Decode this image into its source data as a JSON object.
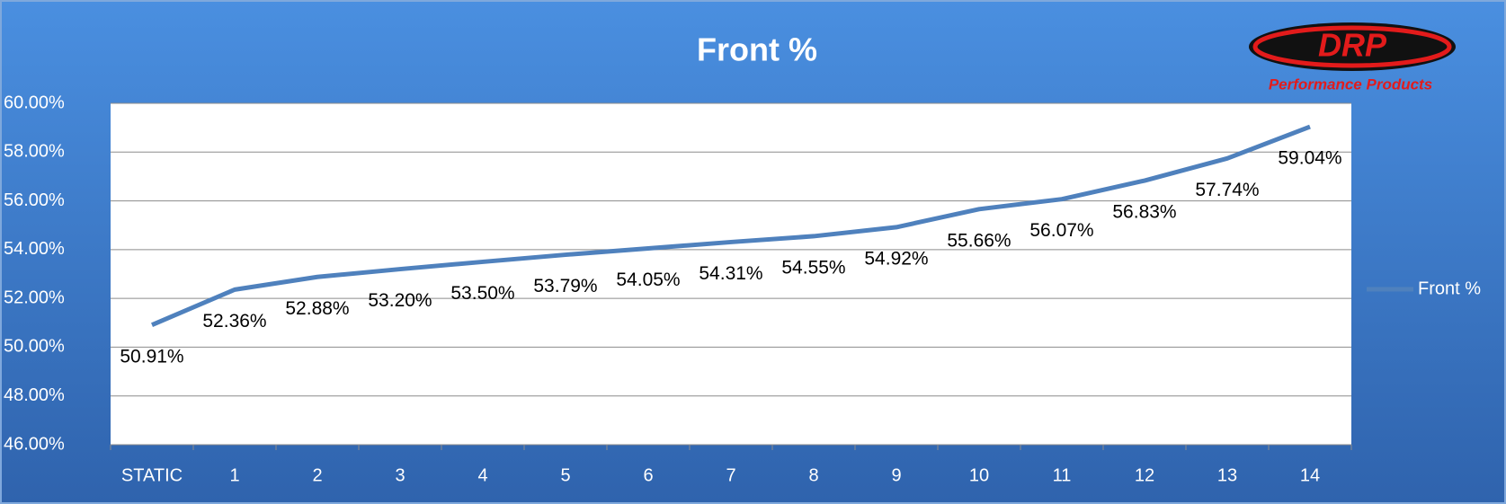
{
  "chart_data": {
    "type": "line",
    "title": "Front %",
    "logo": {
      "brand": "DRP",
      "tagline": "Performance Products"
    },
    "categories": [
      "STATIC",
      "1",
      "2",
      "3",
      "4",
      "5",
      "6",
      "7",
      "8",
      "9",
      "10",
      "11",
      "12",
      "13",
      "14"
    ],
    "series": [
      {
        "name": "Front %",
        "color": "#4f81bd",
        "values": [
          50.91,
          52.36,
          52.88,
          53.2,
          53.5,
          53.79,
          54.05,
          54.31,
          54.55,
          54.92,
          55.66,
          56.07,
          56.83,
          57.74,
          59.04
        ],
        "value_labels": [
          "50.91%",
          "52.36%",
          "52.88%",
          "53.20%",
          "53.50%",
          "53.79%",
          "54.05%",
          "54.31%",
          "54.55%",
          "54.92%",
          "55.66%",
          "56.07%",
          "56.83%",
          "57.74%",
          "59.04%"
        ]
      }
    ],
    "ylim": [
      46,
      60
    ],
    "yticks": [
      {
        "value": 46,
        "label": "46.00%"
      },
      {
        "value": 48,
        "label": "48.00%"
      },
      {
        "value": 50,
        "label": "50.00%"
      },
      {
        "value": 52,
        "label": "52.00%"
      },
      {
        "value": 54,
        "label": "54.00%"
      },
      {
        "value": 56,
        "label": "56.00%"
      },
      {
        "value": 58,
        "label": "58.00%"
      },
      {
        "value": 60,
        "label": "60.00%"
      }
    ],
    "grid": true,
    "legend": "right"
  }
}
